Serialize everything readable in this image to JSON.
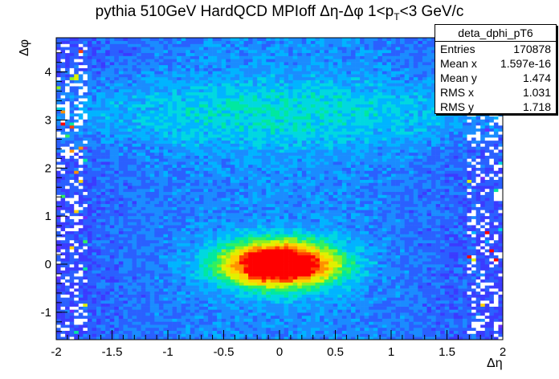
{
  "title": {
    "text": "pythia 510GeV HardQCD MPIoff Δη-Δφ 1<p",
    "sub": "T",
    "tail": "<3 GeV/c"
  },
  "stats": {
    "name": "deta_dphi_pT6",
    "rows": [
      {
        "label": "Entries",
        "value": "170878"
      },
      {
        "label": "Mean x",
        "value": "1.597e-16"
      },
      {
        "label": "Mean y",
        "value": "1.474"
      },
      {
        "label": "RMS x",
        "value": "1.031"
      },
      {
        "label": "RMS y",
        "value": "1.718"
      }
    ]
  },
  "chart_data": {
    "type": "heatmap",
    "title": "pythia 510GeV HardQCD MPIoff Δη-Δφ 1<pT<3 GeV/c",
    "xlabel": "Δη",
    "ylabel": "Δφ",
    "xlim": [
      -2,
      2
    ],
    "ylim": [
      -1.5708,
      4.7124
    ],
    "x_ticks": [
      -2,
      -1.5,
      -1,
      -0.5,
      0,
      0.5,
      1,
      1.5,
      2
    ],
    "x_tick_labels": [
      "-2",
      "-1.5",
      "-1",
      "-0.5",
      "0",
      "0.5",
      "1",
      "1.5",
      "2"
    ],
    "y_ticks": [
      -1,
      0,
      1,
      2,
      3,
      4
    ],
    "y_tick_labels": [
      "-1",
      "0",
      "1",
      "2",
      "3",
      "4"
    ],
    "bins_x": 100,
    "bins_y": 100,
    "palette": [
      "#8a2be2",
      "#6a2bff",
      "#3b3bff",
      "#2a60ff",
      "#1a8cff",
      "#00b4ff",
      "#00d8e0",
      "#00e8a0",
      "#30f060",
      "#90f020",
      "#e0f000",
      "#ffd000",
      "#ff9000",
      "#ff4000",
      "#ff0000"
    ],
    "features": [
      {
        "name": "near-side peak",
        "center": [
          0.0,
          0.0
        ],
        "sigma": [
          0.3,
          0.25
        ],
        "level": "max"
      },
      {
        "name": "away-side ridge",
        "center_phi": 3.14,
        "width_phi": 0.5,
        "level": "medium"
      }
    ],
    "legend": "stats box top-right",
    "grid": false
  }
}
